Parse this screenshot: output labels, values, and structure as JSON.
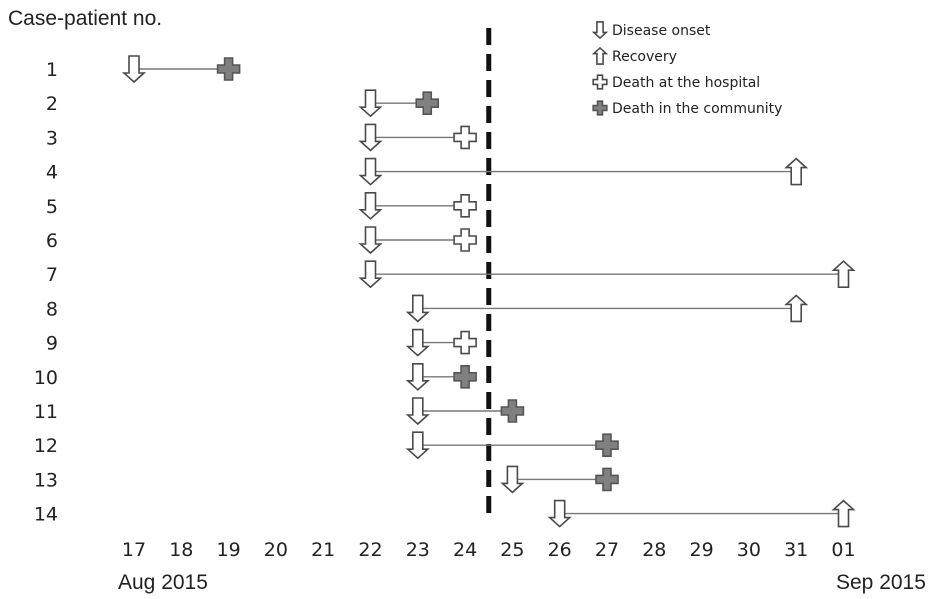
{
  "chart_data": {
    "type": "timeline",
    "title": "",
    "ylabel": "Case-patient no.",
    "x_ticks": [
      "17",
      "18",
      "19",
      "20",
      "21",
      "22",
      "23",
      "24",
      "25",
      "26",
      "27",
      "28",
      "29",
      "30",
      "31",
      "01"
    ],
    "x_month_left": "Aug 2015",
    "x_month_right": "Sep 2015",
    "xlim": [
      "2015-08-17",
      "2015-09-01"
    ],
    "reference_line_date": "2015-08-24.5",
    "legend": [
      {
        "key": "onset",
        "label": "Disease onset"
      },
      {
        "key": "recovery",
        "label": "Recovery"
      },
      {
        "key": "death_hospital",
        "label": "Death at the hospital"
      },
      {
        "key": "death_community",
        "label": "Death in the community"
      }
    ],
    "cases": [
      {
        "id": "1",
        "onset": "2015-08-17",
        "end": "2015-08-19",
        "outcome": "death_community"
      },
      {
        "id": "2",
        "onset": "2015-08-22",
        "end": "2015-08-23.2",
        "outcome": "death_community"
      },
      {
        "id": "3",
        "onset": "2015-08-22",
        "end": "2015-08-24",
        "outcome": "death_hospital"
      },
      {
        "id": "4",
        "onset": "2015-08-22",
        "end": "2015-08-31",
        "outcome": "recovery"
      },
      {
        "id": "5",
        "onset": "2015-08-22",
        "end": "2015-08-24",
        "outcome": "death_hospital"
      },
      {
        "id": "6",
        "onset": "2015-08-22",
        "end": "2015-08-24",
        "outcome": "death_hospital"
      },
      {
        "id": "7",
        "onset": "2015-08-22",
        "end": "2015-09-01",
        "outcome": "recovery"
      },
      {
        "id": "8",
        "onset": "2015-08-23",
        "end": "2015-08-31",
        "outcome": "recovery"
      },
      {
        "id": "9",
        "onset": "2015-08-23",
        "end": "2015-08-24",
        "outcome": "death_hospital"
      },
      {
        "id": "10",
        "onset": "2015-08-23",
        "end": "2015-08-24",
        "outcome": "death_community"
      },
      {
        "id": "11",
        "onset": "2015-08-23",
        "end": "2015-08-25",
        "outcome": "death_community"
      },
      {
        "id": "12",
        "onset": "2015-08-23",
        "end": "2015-08-27",
        "outcome": "death_community"
      },
      {
        "id": "13",
        "onset": "2015-08-25",
        "end": "2015-08-27",
        "outcome": "death_community"
      },
      {
        "id": "14",
        "onset": "2015-08-26",
        "end": "2015-09-01",
        "outcome": "recovery"
      }
    ]
  }
}
